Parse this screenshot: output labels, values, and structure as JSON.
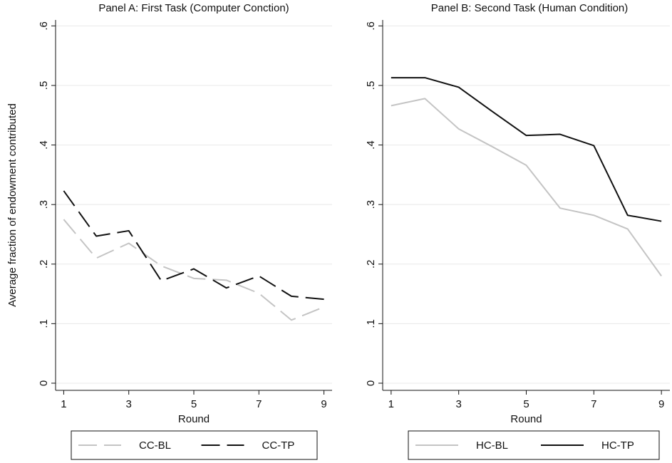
{
  "chart_data": [
    {
      "type": "line",
      "title": "Panel A: First Task (Computer Conction)",
      "xlabel": "Round",
      "ylabel": "Average fraction of endowment contributed",
      "x": [
        1,
        2,
        3,
        4,
        5,
        6,
        7,
        8,
        9
      ],
      "series": [
        {
          "name": "CC-BL",
          "color": "#c4c4c4",
          "style": "dashed",
          "values": [
            0.275,
            0.21,
            0.235,
            0.197,
            0.176,
            0.173,
            0.151,
            0.106,
            0.128
          ]
        },
        {
          "name": "CC-TP",
          "color": "#111111",
          "style": "dashed",
          "values": [
            0.323,
            0.247,
            0.256,
            0.172,
            0.192,
            0.16,
            0.18,
            0.146,
            0.141
          ]
        }
      ],
      "xlim": [
        0.75,
        9.25
      ],
      "ylim": [
        -0.012,
        0.61
      ],
      "xticks": [
        1,
        3,
        5,
        7,
        9
      ],
      "yticks": [
        0,
        {
          "value": 0.1,
          "label": ".1"
        },
        {
          "value": 0.2,
          "label": ".2"
        },
        {
          "value": 0.3,
          "label": ".3"
        },
        {
          "value": 0.4,
          "label": ".4"
        },
        {
          "value": 0.5,
          "label": ".5"
        },
        {
          "value": 0.6,
          "label": ".6"
        }
      ],
      "grid": true,
      "legend": "bottom"
    },
    {
      "type": "line",
      "title": "Panel B: Second Task (Human Condition)",
      "xlabel": "Round",
      "x": [
        1,
        2,
        3,
        4,
        5,
        6,
        7,
        8,
        9
      ],
      "series": [
        {
          "name": "HC-BL",
          "color": "#c4c4c4",
          "style": "solid",
          "values": [
            0.466,
            0.478,
            0.427,
            0.397,
            0.366,
            0.294,
            0.282,
            0.259,
            0.18
          ]
        },
        {
          "name": "HC-TP",
          "color": "#111111",
          "style": "solid",
          "values": [
            0.513,
            0.513,
            0.497,
            0.456,
            0.416,
            0.418,
            0.399,
            0.282,
            0.272
          ]
        }
      ],
      "xlim": [
        0.75,
        9.25
      ],
      "ylim": [
        -0.012,
        0.61
      ],
      "xticks": [
        1,
        3,
        5,
        7,
        9
      ],
      "yticks": [
        0,
        {
          "value": 0.1,
          "label": ".1"
        },
        {
          "value": 0.2,
          "label": ".2"
        },
        {
          "value": 0.3,
          "label": ".3"
        },
        {
          "value": 0.4,
          "label": ".4"
        },
        {
          "value": 0.5,
          "label": ".5"
        },
        {
          "value": 0.6,
          "label": ".6"
        }
      ],
      "grid": true,
      "legend": "bottom"
    }
  ]
}
